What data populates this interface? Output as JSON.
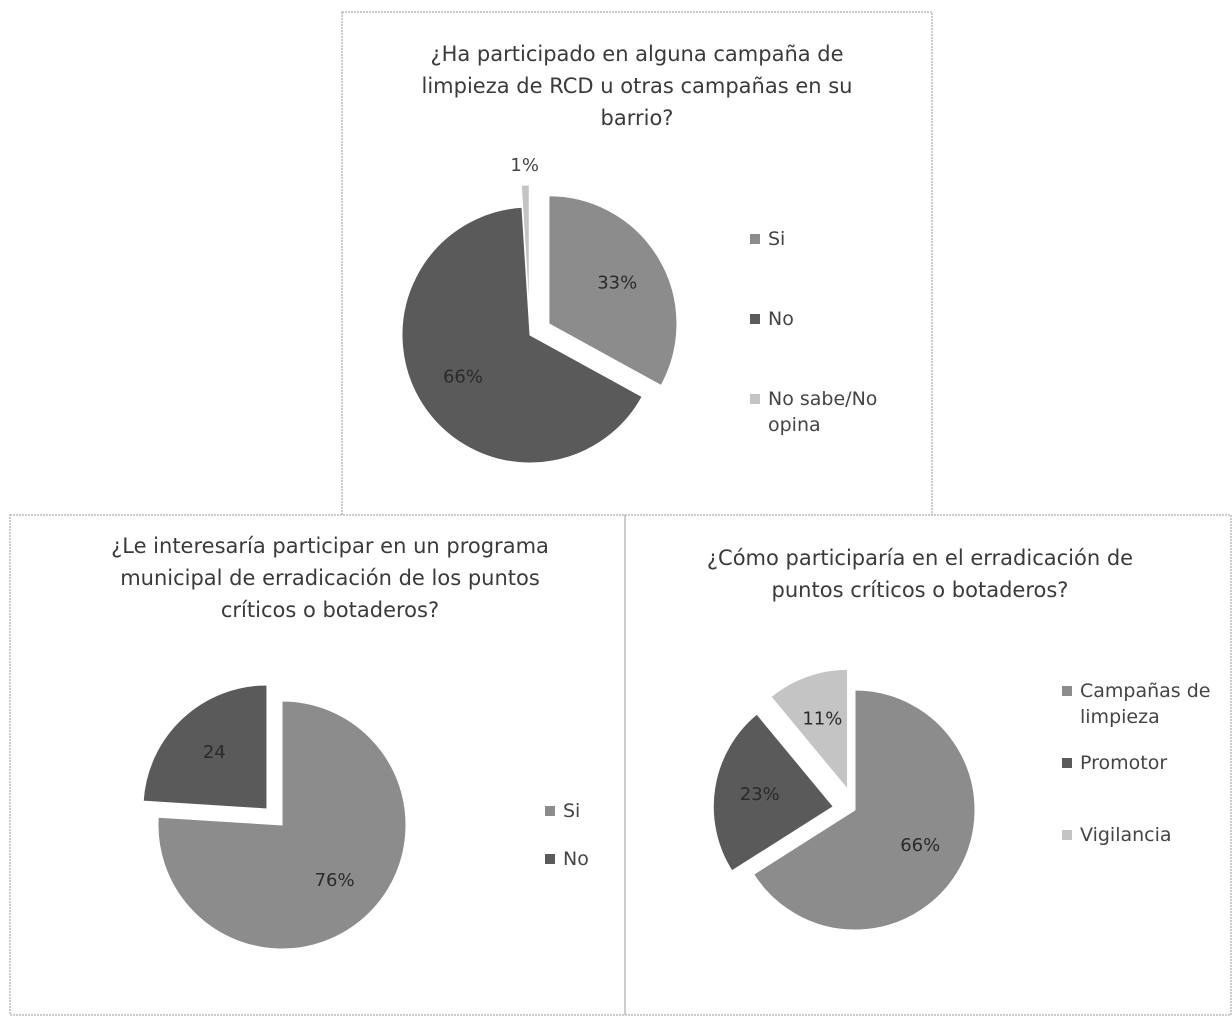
{
  "chart_data": [
    {
      "type": "pie",
      "title": "¿Ha participado en alguna campaña de limpieza de RCD u otras campañas en su barrio?",
      "categories": [
        "Si",
        "No",
        "No sabe/No opina"
      ],
      "values": [
        33,
        66,
        1
      ],
      "value_labels": [
        "33%",
        "66%",
        "1%"
      ],
      "colors": [
        "#8c8c8c",
        "#5a5a5a",
        "#c4c4c4"
      ]
    },
    {
      "type": "pie",
      "title": "¿Le interesaría participar en un programa municipal de erradicación de los puntos críticos o botaderos?",
      "categories": [
        "Si",
        "No"
      ],
      "values": [
        76,
        24
      ],
      "value_labels": [
        "76%",
        "24"
      ],
      "colors": [
        "#8c8c8c",
        "#5a5a5a"
      ]
    },
    {
      "type": "pie",
      "title": "¿Cómo participaría en el erradicación de puntos críticos o botaderos?",
      "categories": [
        "Campañas de limpieza",
        "Promotor",
        "Vigilancia"
      ],
      "values": [
        66,
        23,
        11
      ],
      "value_labels": [
        "66%",
        "23%",
        "11%"
      ],
      "colors": [
        "#8c8c8c",
        "#5a5a5a",
        "#c4c4c4"
      ]
    }
  ]
}
